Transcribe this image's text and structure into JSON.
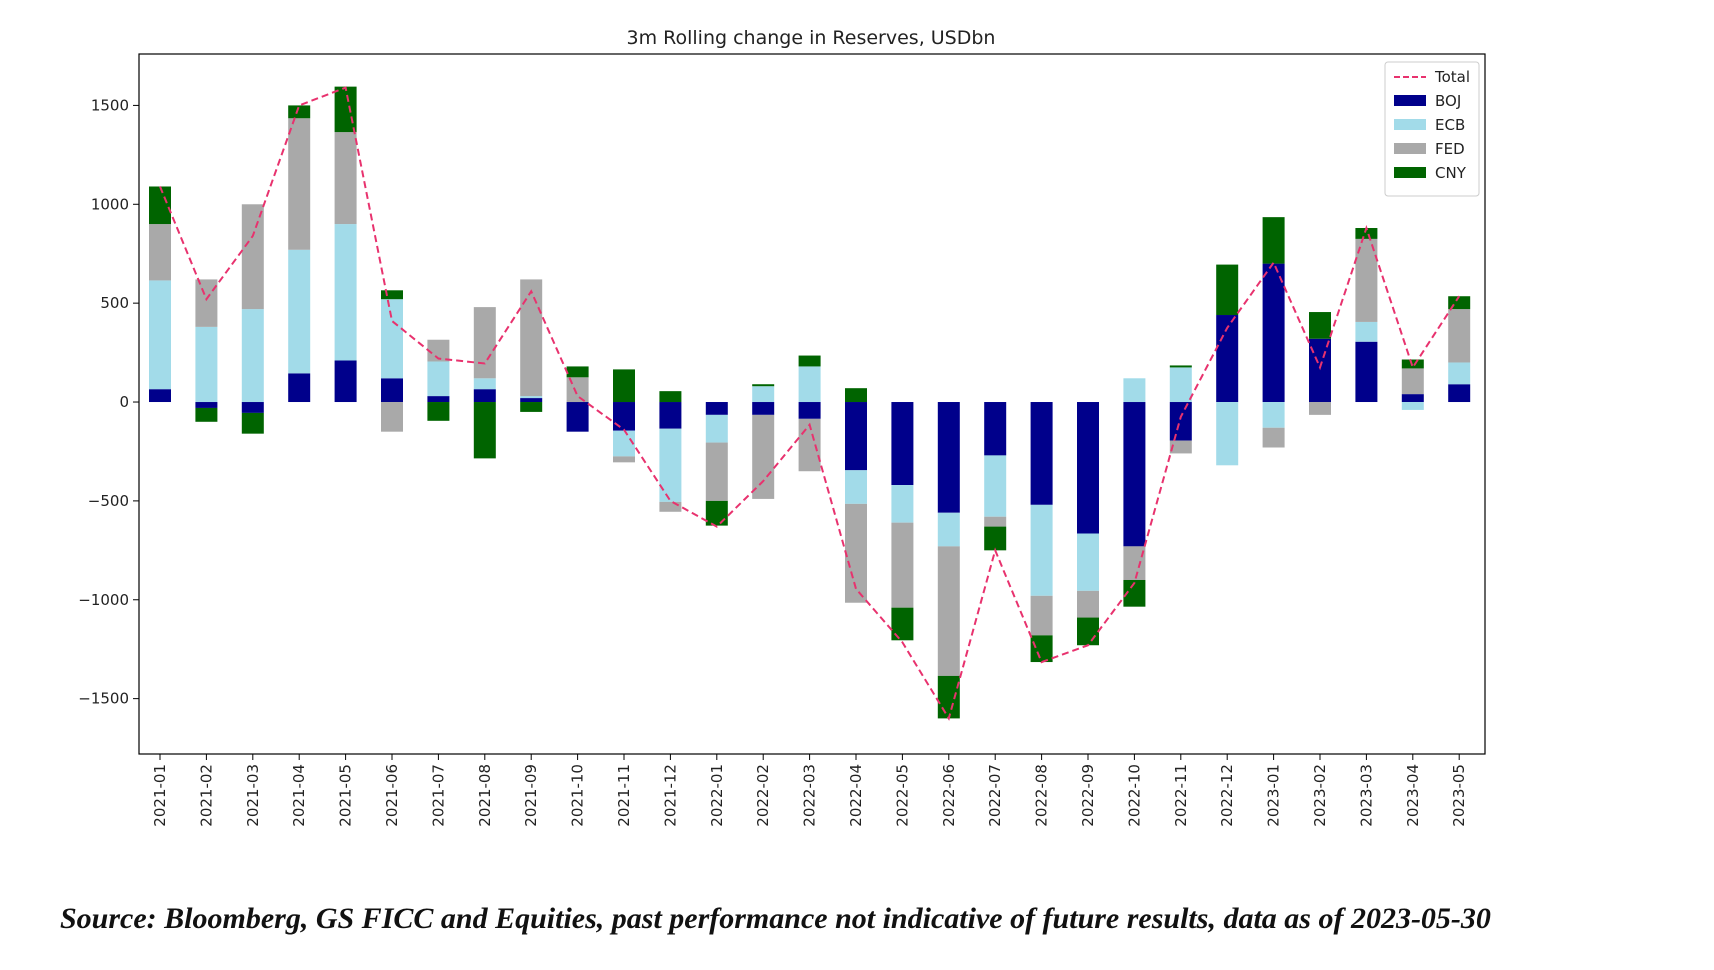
{
  "chart_data": {
    "type": "bar",
    "stacked": true,
    "title": "3m Rolling change in Reserves, USDbn",
    "xlabel": "",
    "ylabel": "",
    "ylim": [
      -1780,
      1760
    ],
    "yticks": [
      1500,
      1000,
      500,
      0,
      -500,
      -1000,
      -1500
    ],
    "ytick_labels": [
      "1500",
      "1000",
      "500",
      "0",
      "−500",
      "−1000",
      "−1500"
    ],
    "categories": [
      "2021-01",
      "2021-02",
      "2021-03",
      "2021-04",
      "2021-05",
      "2021-06",
      "2021-07",
      "2021-08",
      "2021-09",
      "2021-10",
      "2021-11",
      "2021-12",
      "2022-01",
      "2022-02",
      "2022-03",
      "2022-04",
      "2022-05",
      "2022-06",
      "2022-07",
      "2022-08",
      "2022-09",
      "2022-10",
      "2022-11",
      "2022-12",
      "2023-01",
      "2023-02",
      "2023-03",
      "2023-04",
      "2023-05"
    ],
    "series": [
      {
        "name": "BOJ",
        "color": "#00008b",
        "values": [
          65,
          -30,
          -55,
          145,
          210,
          120,
          30,
          65,
          20,
          -150,
          -145,
          -135,
          -65,
          -65,
          -85,
          -345,
          -420,
          -560,
          -270,
          -520,
          -665,
          -730,
          -195,
          440,
          700,
          320,
          305,
          40,
          90
        ]
      },
      {
        "name": "ECB",
        "color": "#a2dbe9",
        "values": [
          550,
          380,
          470,
          625,
          690,
          400,
          175,
          55,
          10,
          0,
          -130,
          -370,
          -140,
          80,
          180,
          -170,
          -190,
          -170,
          -310,
          -460,
          -290,
          120,
          175,
          -320,
          -130,
          0,
          100,
          -40,
          110
        ]
      },
      {
        "name": "FED",
        "color": "#a9a9a9",
        "values": [
          285,
          240,
          530,
          665,
          465,
          -150,
          110,
          360,
          590,
          125,
          -30,
          -50,
          -295,
          -425,
          -265,
          -500,
          -430,
          -655,
          -50,
          -200,
          -135,
          -170,
          -65,
          0,
          -100,
          -65,
          420,
          130,
          270
        ]
      },
      {
        "name": "CNY",
        "color": "#006400",
        "values": [
          190,
          -70,
          -105,
          65,
          230,
          45,
          -95,
          -285,
          -50,
          55,
          165,
          55,
          -125,
          10,
          55,
          70,
          -165,
          -215,
          -120,
          -135,
          -140,
          -135,
          10,
          255,
          235,
          135,
          55,
          45,
          65
        ]
      }
    ],
    "total": {
      "name": "Total",
      "color": "#e8326e",
      "values": [
        1090,
        520,
        840,
        1500,
        1590,
        410,
        220,
        195,
        560,
        30,
        -140,
        -500,
        -630,
        -400,
        -115,
        -945,
        -1215,
        -1600,
        -750,
        -1315,
        -1230,
        -915,
        -75,
        375,
        705,
        175,
        880,
        175,
        535
      ]
    },
    "legend": {
      "placement": "top-right",
      "entries": [
        "Total",
        "BOJ",
        "ECB",
        "FED",
        "CNY"
      ]
    },
    "grid": false
  },
  "footer": {
    "source_note": "Source: Bloomberg, GS FICC and Equities, past performance not indicative of future results, data as of 2023-05-30"
  }
}
